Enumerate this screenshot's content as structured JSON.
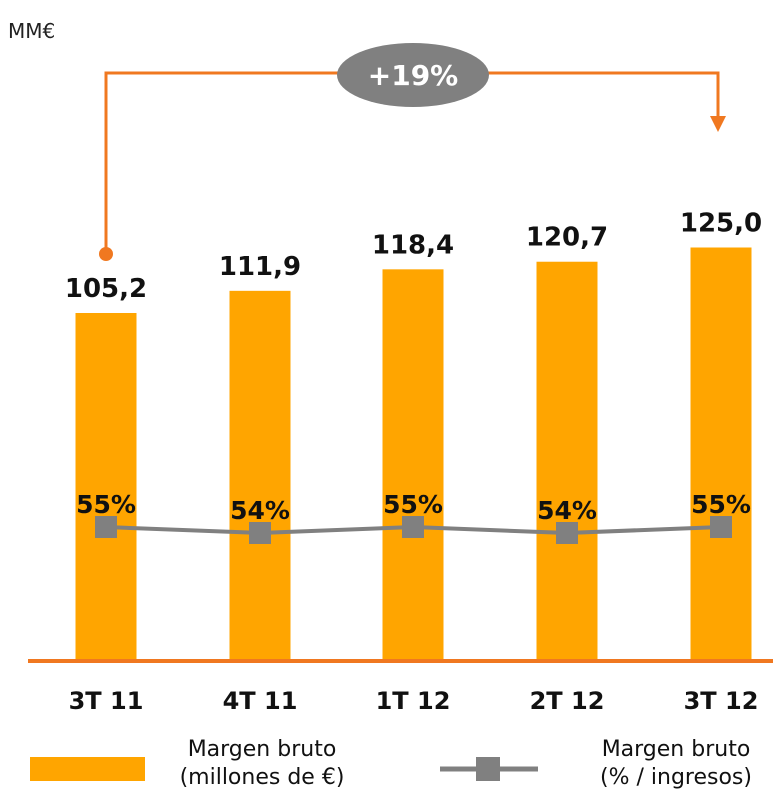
{
  "unit_label": "MM€",
  "growth_label": "+19%",
  "colors": {
    "bar": "#FFA500",
    "axis": "#F07820",
    "arrow": "#F07820",
    "line": "#808080",
    "bubble": "#808080"
  },
  "chart_data": {
    "type": "bar",
    "categories": [
      "3T 11",
      "4T 11",
      "1T 12",
      "2T 12",
      "3T 12"
    ],
    "series": [
      {
        "name": "Margen bruto (millones de €)",
        "values": [
          105.2,
          111.9,
          118.4,
          120.7,
          125.0
        ],
        "labels": [
          "105,2",
          "111,9",
          "118,4",
          "120,7",
          "125,0"
        ]
      },
      {
        "name": "Margen bruto (% / ingresos)",
        "type": "line",
        "values": [
          55,
          54,
          55,
          54,
          55
        ],
        "labels": [
          "55%",
          "54%",
          "55%",
          "54%",
          "55%"
        ]
      }
    ]
  },
  "legend": {
    "bar_line1": "Margen bruto",
    "bar_line2": "(millones de €)",
    "line_line1": "Margen bruto",
    "line_line2": "(% / ingresos)"
  }
}
